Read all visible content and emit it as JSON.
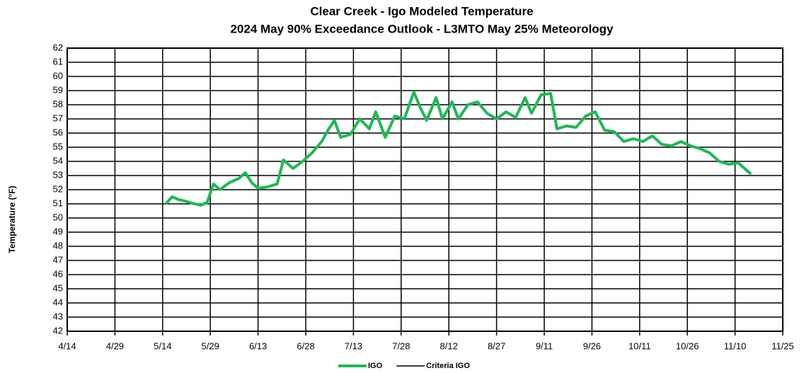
{
  "chart_data": {
    "type": "line",
    "title": "Clear Creek - Igo Modeled Temperature",
    "subtitle": "2024 May 90% Exceedance Outlook - L3MTO May 25% Meteorology",
    "y_label": "Temperature (°F)",
    "x": [
      "5/15",
      "5/17",
      "5/19",
      "5/21",
      "5/24",
      "5/26",
      "5/28",
      "5/30",
      "6/1",
      "6/4",
      "6/7",
      "6/9",
      "6/11",
      "6/13",
      "6/16",
      "6/19",
      "6/21",
      "6/24",
      "6/27",
      "6/30",
      "7/3",
      "7/5",
      "7/7",
      "7/9",
      "7/12",
      "7/15",
      "7/18",
      "7/20",
      "7/23",
      "7/26",
      "7/29",
      "8/1",
      "8/3",
      "8/5",
      "8/8",
      "8/10",
      "8/13",
      "8/15",
      "8/18",
      "8/21",
      "8/24",
      "8/27",
      "8/30",
      "9/2",
      "9/5",
      "9/7",
      "9/10",
      "9/13",
      "9/15",
      "9/18",
      "9/21",
      "9/24",
      "9/27",
      "9/30",
      "10/3",
      "10/6",
      "10/9",
      "10/12",
      "10/15",
      "10/18",
      "10/21",
      "10/24",
      "10/27",
      "10/30",
      "11/2",
      "11/5",
      "11/8",
      "11/11",
      "11/15"
    ],
    "series": [
      {
        "name": "IGO",
        "color": "#1db954",
        "values": [
          51.0,
          51.5,
          51.3,
          51.2,
          51.0,
          50.9,
          51.1,
          52.4,
          52.0,
          52.5,
          52.8,
          53.2,
          52.5,
          52.1,
          52.2,
          52.4,
          54.1,
          53.5,
          54.0,
          54.6,
          55.4,
          56.2,
          56.9,
          55.7,
          55.9,
          57.0,
          56.3,
          57.5,
          55.7,
          57.2,
          57.0,
          58.9,
          57.8,
          56.9,
          58.5,
          57.0,
          58.2,
          57.0,
          58.0,
          58.2,
          57.4,
          57.0,
          57.5,
          57.1,
          58.5,
          57.4,
          58.7,
          58.8,
          56.3,
          56.5,
          56.4,
          57.2,
          57.5,
          56.2,
          56.1,
          55.4,
          55.6,
          55.4,
          55.8,
          55.2,
          55.1,
          55.4,
          55.1,
          54.9,
          54.6,
          54.0,
          53.8,
          53.9,
          53.1
        ]
      },
      {
        "name": "Criteria IGO",
        "color": "#000000",
        "values": [
          null,
          null,
          null,
          null,
          null,
          null,
          null,
          null,
          null,
          null,
          null,
          null,
          null,
          null,
          null,
          null,
          null,
          null,
          null,
          null,
          null,
          null,
          null,
          null,
          null,
          null,
          null,
          null,
          null,
          null,
          null,
          null,
          null,
          null,
          null,
          null,
          null,
          null,
          null,
          null,
          null,
          null,
          null,
          null,
          null,
          null,
          null,
          null,
          null,
          null,
          null,
          null,
          null,
          null,
          null,
          null,
          null,
          null,
          null,
          null,
          null,
          null,
          null,
          null,
          null,
          null,
          null,
          null,
          null
        ]
      }
    ],
    "xlim": [
      "4/14",
      "11/25"
    ],
    "xticks": [
      "4/14",
      "4/29",
      "5/14",
      "5/29",
      "6/13",
      "6/28",
      "7/13",
      "7/28",
      "8/12",
      "8/27",
      "9/11",
      "9/26",
      "10/11",
      "10/26",
      "11/10",
      "11/25"
    ],
    "ylim": [
      42,
      62
    ],
    "yticks": [
      42,
      43,
      44,
      45,
      46,
      47,
      48,
      49,
      50,
      51,
      52,
      53,
      54,
      55,
      56,
      57,
      58,
      59,
      60,
      61,
      62
    ],
    "grid": true
  }
}
